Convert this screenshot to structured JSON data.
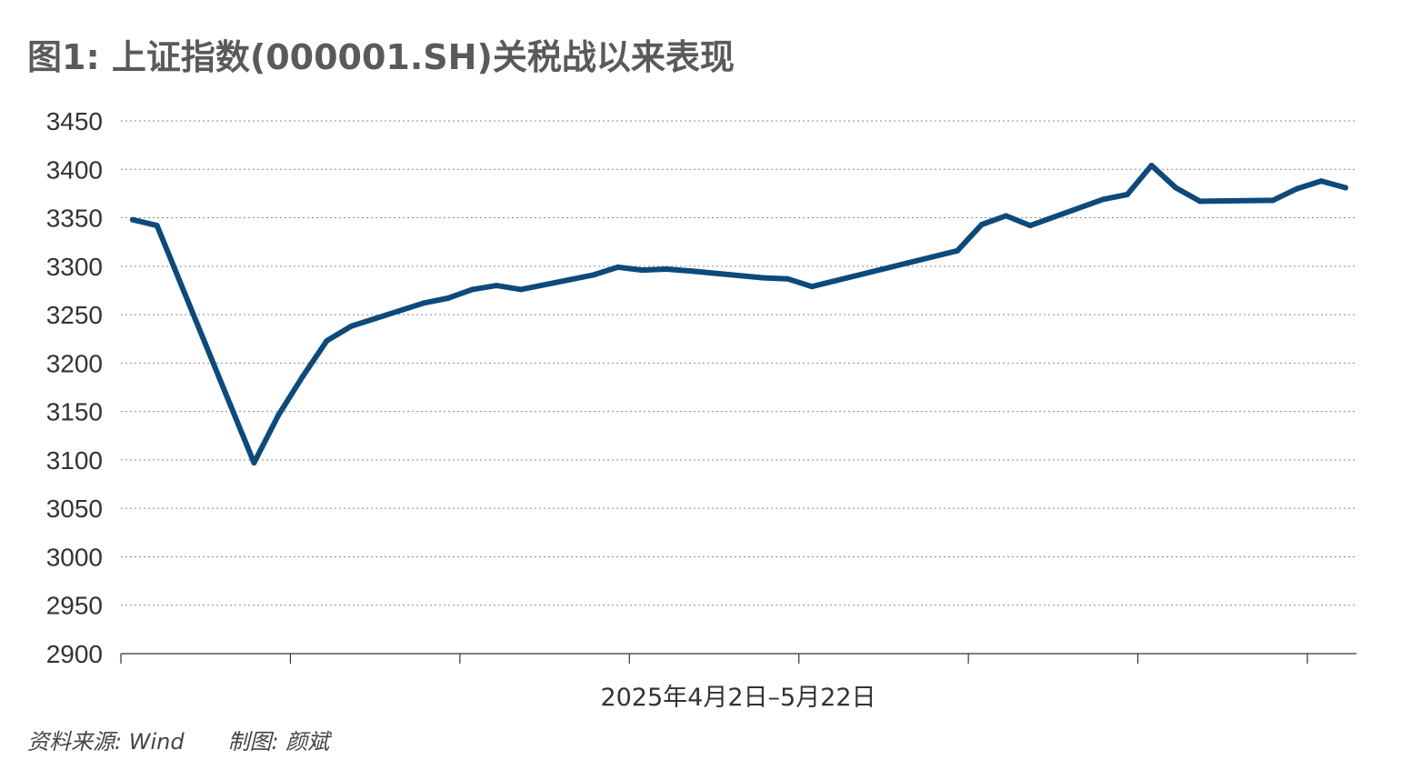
{
  "chart_data": {
    "type": "line",
    "title": "图1: 上证指数(000001.SH)关税战以来表现",
    "xlabel": "2025年4月2日–5月22日",
    "ylabel": "",
    "ylim": [
      2900,
      3450
    ],
    "yticks": [
      3450,
      3400,
      3350,
      3300,
      3250,
      3200,
      3150,
      3100,
      3050,
      3000,
      2950,
      2900
    ],
    "grid": true,
    "legend": "none",
    "line_color": "#0d4a7a",
    "x": [
      "2025-04-02",
      "2025-04-03",
      "2025-04-07",
      "2025-04-08",
      "2025-04-09",
      "2025-04-10",
      "2025-04-11",
      "2025-04-14",
      "2025-04-15",
      "2025-04-16",
      "2025-04-17",
      "2025-04-18",
      "2025-04-21",
      "2025-04-22",
      "2025-04-23",
      "2025-04-24",
      "2025-04-25",
      "2025-04-28",
      "2025-04-29",
      "2025-04-30",
      "2025-05-06",
      "2025-05-07",
      "2025-05-08",
      "2025-05-09",
      "2025-05-12",
      "2025-05-13",
      "2025-05-14",
      "2025-05-15",
      "2025-05-16",
      "2025-05-19",
      "2025-05-20",
      "2025-05-21",
      "2025-05-22"
    ],
    "series": [
      {
        "values": [
          3348,
          3342,
          3097,
          3146,
          3186,
          3223,
          3238,
          3262,
          3267,
          3276,
          3280,
          3276,
          3291,
          3299,
          3296,
          3297,
          3295,
          3288,
          3287,
          3279,
          3316,
          3343,
          3352,
          3342,
          3369,
          3374,
          3404,
          3381,
          3367,
          3368,
          3380,
          3388,
          3381
        ]
      }
    ]
  },
  "footer": {
    "source": "资料来源: Wind",
    "author": "制图: 颜斌"
  }
}
